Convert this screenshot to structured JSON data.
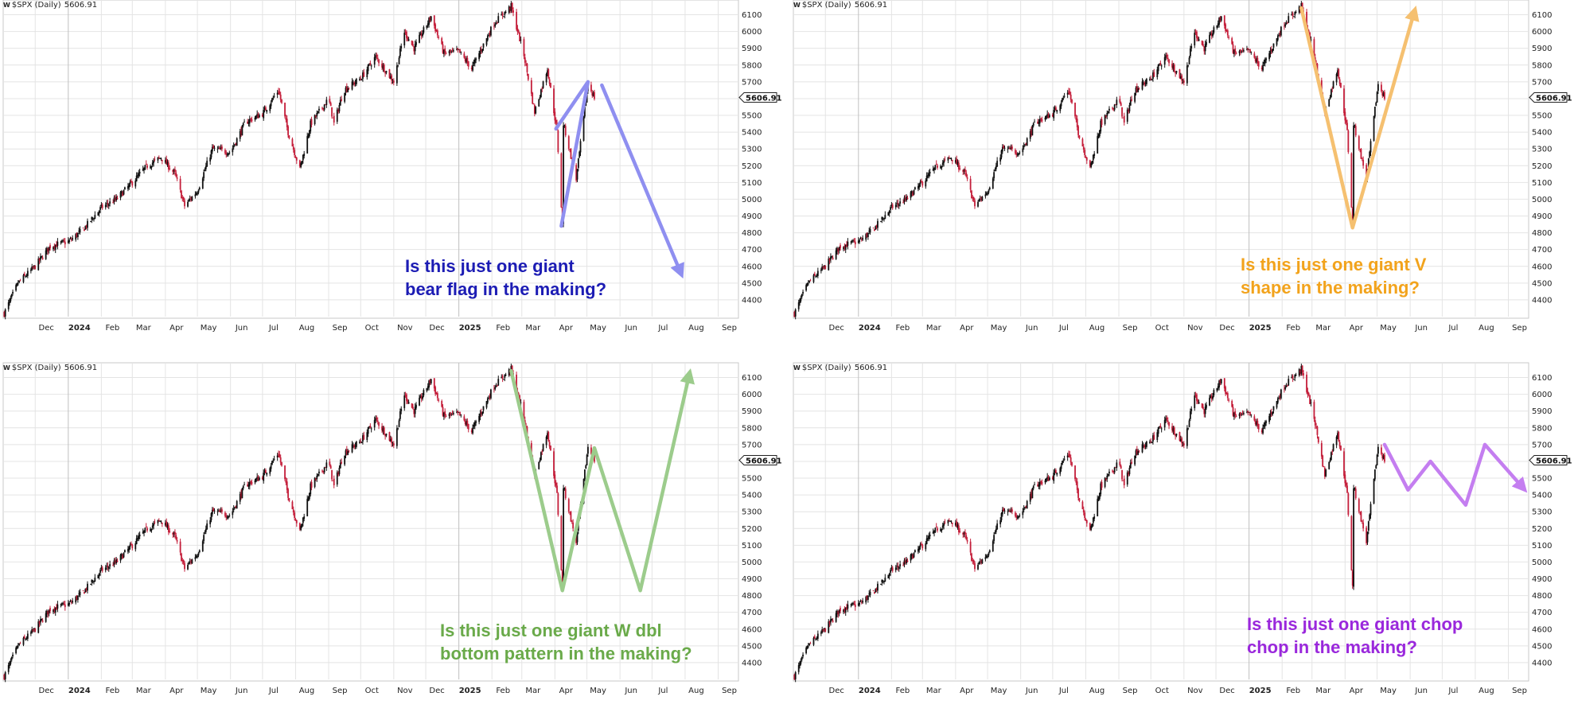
{
  "panels": [
    {
      "header": {
        "symbol": "$SPX (Daily)",
        "last": "5606.91",
        "logo": "W"
      },
      "price_tag": "5606.91",
      "callout": {
        "line1": "Is this just one giant",
        "line2": "bear flag in the making?"
      },
      "colors": {
        "callout": "#1c1cb4",
        "overlay": "#8f8ff0"
      },
      "overlay_icon": "bear-flag-projection-arrow",
      "x_ticks": [
        "Dec",
        "2024",
        "Feb",
        "Mar",
        "Apr",
        "May",
        "Jun",
        "Jul",
        "Aug",
        "Sep",
        "Oct",
        "Nov",
        "Dec",
        "2025",
        "Feb",
        "Mar",
        "Apr",
        "May",
        "Jun",
        "Jul",
        "Aug",
        "Sep"
      ]
    },
    {
      "header": {
        "symbol": "$SPX (Daily)",
        "last": "5606.91",
        "logo": "W"
      },
      "price_tag": "5606.91",
      "callout": {
        "line1": "Is this just one giant V",
        "line2": "shape in the making?"
      },
      "colors": {
        "callout": "#f2a31c",
        "overlay": "#f5c070"
      },
      "overlay_icon": "v-shape-projection-arrow",
      "x_ticks": [
        "Dec",
        "2024",
        "Feb",
        "Mar",
        "Apr",
        "May",
        "Jun",
        "Jul",
        "Aug",
        "Sep",
        "Oct",
        "Nov",
        "Dec",
        "2025",
        "Feb",
        "Mar",
        "Apr",
        "May",
        "Jun",
        "Jul",
        "Aug",
        "Sep"
      ]
    },
    {
      "header": {
        "symbol": "$SPX (Daily)",
        "last": "5606.91",
        "logo": "W"
      },
      "price_tag": "5606.91",
      "callout": {
        "line1": "Is this just one giant W dbl",
        "line2": "bottom pattern in the making?"
      },
      "colors": {
        "callout": "#6aaa4a",
        "overlay": "#9ccc8c"
      },
      "overlay_icon": "w-double-bottom-projection-arrow",
      "x_ticks": [
        "Dec",
        "2024",
        "Feb",
        "Mar",
        "Apr",
        "May",
        "Jun",
        "Jul",
        "Aug",
        "Sep",
        "Oct",
        "Nov",
        "Dec",
        "2025",
        "Feb",
        "Mar",
        "Apr",
        "May",
        "Jun",
        "Jul",
        "Aug",
        "Sep"
      ]
    },
    {
      "header": {
        "symbol": "$SPX (Daily)",
        "last": "5606.91",
        "logo": "W"
      },
      "price_tag": "5606.91",
      "callout": {
        "line1": "Is this just one giant chop",
        "line2": "chop in the making?"
      },
      "colors": {
        "callout": "#9a28dc",
        "overlay": "#c47ef0"
      },
      "overlay_icon": "chop-zigzag-projection-arrow",
      "x_ticks": [
        "Dec",
        "2024",
        "Feb",
        "Mar",
        "Apr",
        "May",
        "Jun",
        "Jul",
        "Aug",
        "Sep",
        "Oct",
        "Nov",
        "Dec",
        "2025",
        "Feb",
        "Mar",
        "Apr",
        "May",
        "Jun",
        "Jul",
        "Aug",
        "Sep"
      ]
    }
  ],
  "chart_data": {
    "type": "line",
    "title": "$SPX (Daily) 5606.91",
    "xlabel": "",
    "ylabel": "",
    "ylim": [
      4300,
      6150
    ],
    "y_ticks": [
      4400,
      4500,
      4600,
      4700,
      4800,
      4900,
      5000,
      5100,
      5200,
      5300,
      5400,
      5500,
      5600,
      5700,
      5800,
      5900,
      6000,
      6100
    ],
    "x_ticks": [
      "Dec",
      "2024",
      "Feb",
      "Mar",
      "Apr",
      "May",
      "Jun",
      "Jul",
      "Aug",
      "Sep",
      "Oct",
      "Nov",
      "Dec",
      "2025",
      "Feb",
      "Mar",
      "Apr",
      "May",
      "Jun",
      "Jul",
      "Aug",
      "Sep"
    ],
    "grid": true,
    "last_value": 5606.91,
    "series": [
      {
        "x": [
          "2023-11-02",
          "2023-11-15",
          "2023-12-01",
          "2023-12-15",
          "2024-01-02",
          "2024-01-15",
          "2024-02-01",
          "2024-02-15",
          "2024-03-01",
          "2024-03-15",
          "2024-03-28",
          "2024-04-10",
          "2024-04-19",
          "2024-05-01",
          "2024-05-15",
          "2024-06-01",
          "2024-06-15",
          "2024-07-01",
          "2024-07-16",
          "2024-07-25",
          "2024-08-05",
          "2024-08-15",
          "2024-09-01",
          "2024-09-06",
          "2024-09-15",
          "2024-10-01",
          "2024-10-15",
          "2024-11-01",
          "2024-11-11",
          "2024-11-20",
          "2024-12-06",
          "2024-12-18",
          "2025-01-01",
          "2025-01-13",
          "2025-02-03",
          "2025-02-19",
          "2025-03-03",
          "2025-03-13",
          "2025-03-25",
          "2025-04-03",
          "2025-04-08",
          "2025-04-09",
          "2025-04-21",
          "2025-05-02",
          "2025-05-08"
        ],
        "values": [
          4320,
          4500,
          4600,
          4720,
          4750,
          4820,
          4950,
          5000,
          5100,
          5200,
          5250,
          5150,
          4960,
          5050,
          5300,
          5280,
          5460,
          5510,
          5650,
          5400,
          5180,
          5450,
          5600,
          5450,
          5650,
          5720,
          5850,
          5700,
          6000,
          5900,
          6090,
          5870,
          5880,
          5780,
          6050,
          6150,
          5860,
          5520,
          5780,
          5400,
          4850,
          5450,
          5120,
          5690,
          5607
        ]
      }
    ]
  }
}
